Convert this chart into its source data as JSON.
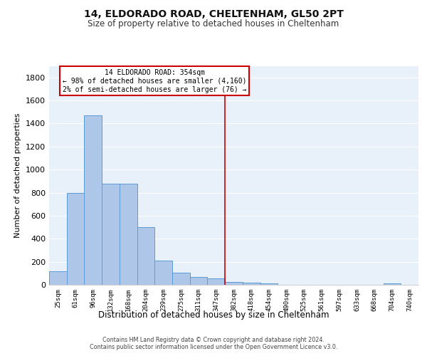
{
  "title1": "14, ELDORADO ROAD, CHELTENHAM, GL50 2PT",
  "title2": "Size of property relative to detached houses in Cheltenham",
  "xlabel": "Distribution of detached houses by size in Cheltenham",
  "ylabel": "Number of detached properties",
  "categories": [
    "25sqm",
    "61sqm",
    "96sqm",
    "132sqm",
    "168sqm",
    "204sqm",
    "239sqm",
    "275sqm",
    "311sqm",
    "347sqm",
    "382sqm",
    "418sqm",
    "454sqm",
    "490sqm",
    "525sqm",
    "561sqm",
    "597sqm",
    "633sqm",
    "668sqm",
    "704sqm",
    "740sqm"
  ],
  "values": [
    120,
    800,
    1470,
    880,
    880,
    500,
    210,
    105,
    70,
    55,
    25,
    20,
    10,
    0,
    0,
    0,
    0,
    0,
    0,
    15,
    0
  ],
  "bar_color": "#aec6e8",
  "bar_edge_color": "#5b9bd5",
  "property_line_index": 9,
  "annotation_line1": "14 ELDORADO ROAD: 354sqm",
  "annotation_line2": "← 98% of detached houses are smaller (4,160)",
  "annotation_line3": "2% of semi-detached houses are larger (76) →",
  "annotation_box_color": "#ffffff",
  "annotation_box_edge": "#cc0000",
  "vline_color": "#cc0000",
  "ylim": [
    0,
    1900
  ],
  "yticks": [
    0,
    200,
    400,
    600,
    800,
    1000,
    1200,
    1400,
    1600,
    1800
  ],
  "background_color": "#e8f0fa",
  "grid_color": "#ffffff",
  "footer1": "Contains HM Land Registry data © Crown copyright and database right 2024.",
  "footer2": "Contains public sector information licensed under the Open Government Licence v3.0."
}
